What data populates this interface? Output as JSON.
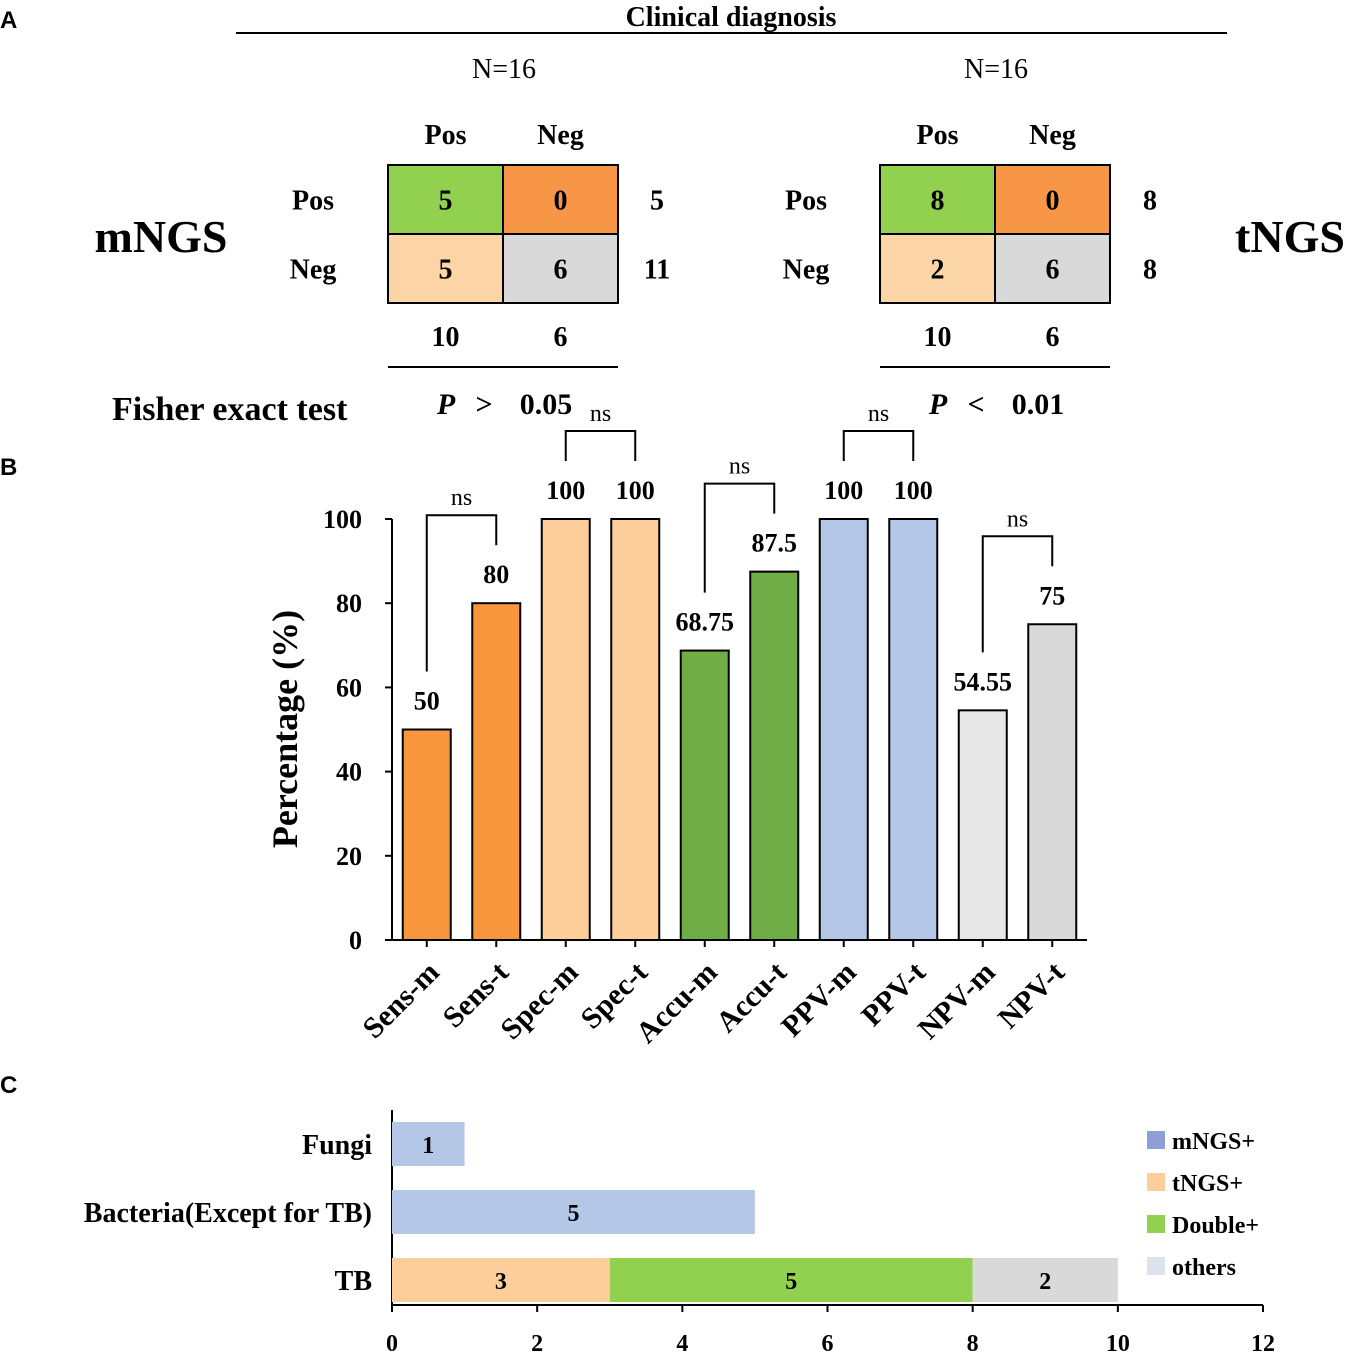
{
  "panelA": {
    "letter": "A",
    "header": "Clinical diagnosis",
    "fisher_label": "Fisher exact test",
    "tables": [
      {
        "method": "mNGS",
        "n_label": "N=16",
        "col_labels": [
          "Pos",
          "Neg"
        ],
        "row_labels": [
          "Pos",
          "Neg"
        ],
        "cells": [
          [
            5,
            0
          ],
          [
            5,
            6
          ]
        ],
        "row_totals": [
          5,
          11
        ],
        "col_totals": [
          10,
          6
        ],
        "p_symbol": "P",
        "p_op": ">",
        "p_value": "0.05"
      },
      {
        "method": "tNGS",
        "n_label": "N=16",
        "col_labels": [
          "Pos",
          "Neg"
        ],
        "row_labels": [
          "Pos",
          "Neg"
        ],
        "cells": [
          [
            8,
            0
          ],
          [
            2,
            6
          ]
        ],
        "row_totals": [
          8,
          8
        ],
        "col_totals": [
          10,
          6
        ],
        "p_symbol": "P",
        "p_op": "<",
        "p_value": "0.01"
      }
    ],
    "cell_colors": [
      [
        "#92d050",
        "#f79646"
      ],
      [
        "#fbd5a5",
        "#d9d9d9"
      ]
    ]
  },
  "chart_data": [
    {
      "panel": "B",
      "type": "bar",
      "categories": [
        "Sens-m",
        "Sens-t",
        "Spec-m",
        "Spec-t",
        "Accu-m",
        "Accu-t",
        "PPV-m",
        "PPV-t",
        "NPV-m",
        "NPV-t"
      ],
      "values": [
        50,
        80,
        100,
        100,
        68.75,
        87.5,
        100,
        100,
        54.55,
        75
      ],
      "value_labels": [
        "50",
        "80",
        "100",
        "100",
        "68.75",
        "87.5",
        "100",
        "100",
        "54.55",
        "75"
      ],
      "colors": [
        "#f7963c",
        "#f7963c",
        "#fdce99",
        "#fdce99",
        "#70ad47",
        "#70ad47",
        "#b4c7e7",
        "#b4c7e7",
        "#e7e7e7",
        "#d9d9d9"
      ],
      "ylabel": "Percentage (%)",
      "xlabel": "",
      "ylim": [
        0,
        100
      ],
      "yticks": [
        0,
        20,
        40,
        60,
        80,
        100
      ],
      "grid": false,
      "comparisons": [
        {
          "pair": [
            0,
            1
          ],
          "label": "ns"
        },
        {
          "pair": [
            2,
            3
          ],
          "label": "ns"
        },
        {
          "pair": [
            4,
            5
          ],
          "label": "ns"
        },
        {
          "pair": [
            6,
            7
          ],
          "label": "ns"
        },
        {
          "pair": [
            8,
            9
          ],
          "label": "ns"
        }
      ]
    },
    {
      "panel": "C",
      "type": "bar",
      "orientation": "horizontal",
      "stacked": true,
      "categories": [
        "Fungi",
        "Bacteria(Except for TB)",
        "TB"
      ],
      "series": [
        {
          "name": "mNGS+",
          "color": "#8e9fd3",
          "values": [
            0,
            0,
            0
          ]
        },
        {
          "name": "tNGS+",
          "color": "#fdce99",
          "values": [
            0,
            0,
            3
          ]
        },
        {
          "name": "Double+",
          "color": "#92d050",
          "values": [
            0,
            0,
            5
          ]
        },
        {
          "name": "others",
          "color": "#dde2ee",
          "values": [
            0,
            0,
            0
          ]
        }
      ],
      "extra_segments": [
        {
          "category": "Fungi",
          "value": 1,
          "color": "#b4c7e7"
        },
        {
          "category": "Bacteria(Except for TB)",
          "value": 5,
          "color": "#b4c7e7"
        },
        {
          "category": "TB",
          "value": 2,
          "color": "#d9d9d9"
        }
      ],
      "xlim": [
        0,
        12
      ],
      "xticks": [
        0,
        2,
        4,
        6,
        8,
        10,
        12
      ],
      "legend": "right",
      "xlabel": "",
      "ylabel": ""
    }
  ],
  "panel_letters": {
    "B": "B",
    "C": "C"
  }
}
